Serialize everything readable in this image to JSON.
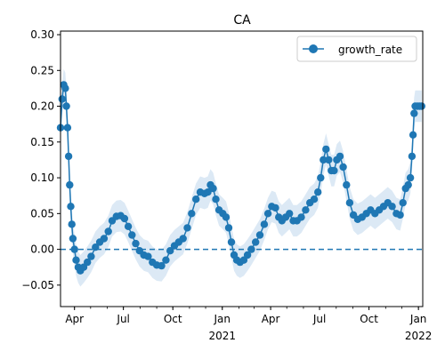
{
  "chart_data": {
    "type": "line",
    "title": "CA",
    "xlabel": "",
    "ylabel": "",
    "xlim": [
      "2020-03-06",
      "2022-01-09"
    ],
    "ylim": [
      -0.08,
      0.305
    ],
    "x_ticks": [
      {
        "date": "2020-04-01",
        "label": "Apr",
        "sublabel": ""
      },
      {
        "date": "2020-07-01",
        "label": "Jul",
        "sublabel": ""
      },
      {
        "date": "2020-10-01",
        "label": "Oct",
        "sublabel": ""
      },
      {
        "date": "2021-01-01",
        "label": "Jan",
        "sublabel": "2021"
      },
      {
        "date": "2021-04-01",
        "label": "Apr",
        "sublabel": ""
      },
      {
        "date": "2021-07-01",
        "label": "Jul",
        "sublabel": ""
      },
      {
        "date": "2021-10-01",
        "label": "Oct",
        "sublabel": ""
      },
      {
        "date": "2022-01-01",
        "label": "Jan",
        "sublabel": "2022"
      }
    ],
    "y_ticks": [
      "−0.05",
      "0.00",
      "0.05",
      "0.10",
      "0.15",
      "0.20",
      "0.25",
      "0.30"
    ],
    "y_tick_values": [
      -0.05,
      0,
      0.05,
      0.1,
      0.15,
      0.2,
      0.25,
      0.3
    ],
    "reference_line": {
      "y": 0.0,
      "style": "dashed",
      "color": "#1f77b4"
    },
    "legend": {
      "position": "top-right",
      "entries": [
        "growth_rate"
      ]
    },
    "colors": {
      "series": "#1f77b4",
      "band": "#dce9f5"
    },
    "grid": false,
    "series": [
      {
        "name": "growth_rate",
        "marker": "circle",
        "band_width": 0.022,
        "points": [
          [
            "2020-03-06",
            0.17
          ],
          [
            "2020-03-09",
            0.21
          ],
          [
            "2020-03-12",
            0.23
          ],
          [
            "2020-03-15",
            0.225
          ],
          [
            "2020-03-17",
            0.2
          ],
          [
            "2020-03-19",
            0.17
          ],
          [
            "2020-03-21",
            0.13
          ],
          [
            "2020-03-23",
            0.09
          ],
          [
            "2020-03-25",
            0.06
          ],
          [
            "2020-03-27",
            0.035
          ],
          [
            "2020-03-29",
            0.015
          ],
          [
            "2020-04-01",
            0.0
          ],
          [
            "2020-04-04",
            -0.015
          ],
          [
            "2020-04-08",
            -0.025
          ],
          [
            "2020-04-12",
            -0.03
          ],
          [
            "2020-04-18",
            -0.025
          ],
          [
            "2020-04-25",
            -0.018
          ],
          [
            "2020-05-02",
            -0.01
          ],
          [
            "2020-05-10",
            0.003
          ],
          [
            "2020-05-18",
            0.01
          ],
          [
            "2020-05-26",
            0.015
          ],
          [
            "2020-06-03",
            0.025
          ],
          [
            "2020-06-10",
            0.04
          ],
          [
            "2020-06-18",
            0.046
          ],
          [
            "2020-06-26",
            0.047
          ],
          [
            "2020-07-03",
            0.043
          ],
          [
            "2020-07-10",
            0.032
          ],
          [
            "2020-07-17",
            0.02
          ],
          [
            "2020-07-24",
            0.008
          ],
          [
            "2020-07-31",
            -0.002
          ],
          [
            "2020-08-08",
            -0.008
          ],
          [
            "2020-08-16",
            -0.01
          ],
          [
            "2020-08-24",
            -0.018
          ],
          [
            "2020-09-01",
            -0.022
          ],
          [
            "2020-09-10",
            -0.023
          ],
          [
            "2020-09-18",
            -0.015
          ],
          [
            "2020-09-26",
            -0.002
          ],
          [
            "2020-10-04",
            0.005
          ],
          [
            "2020-10-12",
            0.01
          ],
          [
            "2020-10-20",
            0.015
          ],
          [
            "2020-10-28",
            0.03
          ],
          [
            "2020-11-05",
            0.05
          ],
          [
            "2020-11-13",
            0.07
          ],
          [
            "2020-11-21",
            0.08
          ],
          [
            "2020-11-29",
            0.078
          ],
          [
            "2020-12-05",
            0.08
          ],
          [
            "2020-12-10",
            0.09
          ],
          [
            "2020-12-15",
            0.085
          ],
          [
            "2020-12-20",
            0.07
          ],
          [
            "2020-12-26",
            0.055
          ],
          [
            "2021-01-02",
            0.05
          ],
          [
            "2021-01-08",
            0.045
          ],
          [
            "2021-01-13",
            0.03
          ],
          [
            "2021-01-18",
            0.01
          ],
          [
            "2021-01-23",
            -0.008
          ],
          [
            "2021-01-28",
            -0.015
          ],
          [
            "2021-02-03",
            -0.018
          ],
          [
            "2021-02-10",
            -0.015
          ],
          [
            "2021-02-17",
            -0.008
          ],
          [
            "2021-02-24",
            0.0
          ],
          [
            "2021-03-04",
            0.01
          ],
          [
            "2021-03-12",
            0.02
          ],
          [
            "2021-03-20",
            0.035
          ],
          [
            "2021-03-27",
            0.05
          ],
          [
            "2021-04-03",
            0.06
          ],
          [
            "2021-04-10",
            0.058
          ],
          [
            "2021-04-16",
            0.045
          ],
          [
            "2021-04-22",
            0.04
          ],
          [
            "2021-04-29",
            0.045
          ],
          [
            "2021-05-06",
            0.05
          ],
          [
            "2021-05-13",
            0.04
          ],
          [
            "2021-05-20",
            0.04
          ],
          [
            "2021-05-28",
            0.045
          ],
          [
            "2021-06-05",
            0.055
          ],
          [
            "2021-06-13",
            0.065
          ],
          [
            "2021-06-21",
            0.07
          ],
          [
            "2021-06-28",
            0.08
          ],
          [
            "2021-07-03",
            0.1
          ],
          [
            "2021-07-08",
            0.125
          ],
          [
            "2021-07-13",
            0.14
          ],
          [
            "2021-07-18",
            0.125
          ],
          [
            "2021-07-23",
            0.11
          ],
          [
            "2021-07-28",
            0.11
          ],
          [
            "2021-08-02",
            0.125
          ],
          [
            "2021-08-08",
            0.13
          ],
          [
            "2021-08-14",
            0.115
          ],
          [
            "2021-08-20",
            0.09
          ],
          [
            "2021-08-26",
            0.065
          ],
          [
            "2021-09-02",
            0.048
          ],
          [
            "2021-09-10",
            0.042
          ],
          [
            "2021-09-18",
            0.045
          ],
          [
            "2021-09-26",
            0.05
          ],
          [
            "2021-10-04",
            0.055
          ],
          [
            "2021-10-12",
            0.05
          ],
          [
            "2021-10-20",
            0.055
          ],
          [
            "2021-10-28",
            0.06
          ],
          [
            "2021-11-05",
            0.065
          ],
          [
            "2021-11-13",
            0.06
          ],
          [
            "2021-11-21",
            0.05
          ],
          [
            "2021-11-28",
            0.048
          ],
          [
            "2021-12-03",
            0.065
          ],
          [
            "2021-12-08",
            0.085
          ],
          [
            "2021-12-13",
            0.09
          ],
          [
            "2021-12-17",
            0.1
          ],
          [
            "2021-12-20",
            0.13
          ],
          [
            "2021-12-22",
            0.16
          ],
          [
            "2021-12-24",
            0.19
          ],
          [
            "2021-12-26",
            0.2
          ],
          [
            "2021-12-30",
            0.2
          ],
          [
            "2022-01-03",
            0.2
          ],
          [
            "2022-01-07",
            0.2
          ]
        ]
      }
    ]
  }
}
